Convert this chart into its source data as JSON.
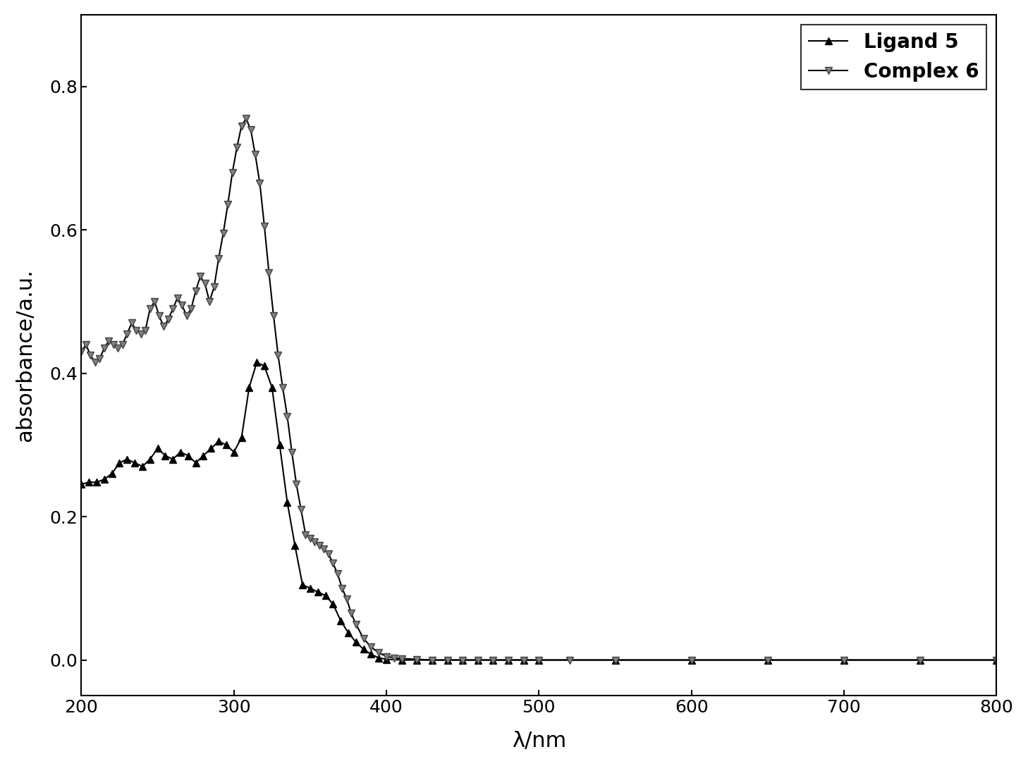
{
  "title": "",
  "xlabel": "λ/nm",
  "ylabel": "absorbance/a.u.",
  "xlim": [
    200,
    800
  ],
  "ylim": [
    -0.05,
    0.9
  ],
  "yticks": [
    0.0,
    0.2,
    0.4,
    0.6,
    0.8
  ],
  "xticks": [
    200,
    300,
    400,
    500,
    600,
    700,
    800
  ],
  "background_color": "#ffffff",
  "line_color": "#000000",
  "legend_labels": [
    "Ligand 5",
    "Complex 6"
  ],
  "ligand5_x": [
    200,
    205,
    210,
    215,
    220,
    225,
    230,
    235,
    240,
    245,
    250,
    255,
    260,
    265,
    270,
    275,
    280,
    285,
    290,
    295,
    300,
    305,
    310,
    315,
    320,
    325,
    330,
    335,
    340,
    345,
    350,
    355,
    360,
    365,
    370,
    375,
    380,
    385,
    390,
    395,
    400,
    410,
    420,
    430,
    440,
    450,
    460,
    470,
    480,
    490,
    500,
    550,
    600,
    650,
    700,
    750,
    800
  ],
  "ligand5_y": [
    0.245,
    0.248,
    0.248,
    0.252,
    0.26,
    0.275,
    0.28,
    0.275,
    0.27,
    0.28,
    0.295,
    0.285,
    0.28,
    0.29,
    0.285,
    0.275,
    0.285,
    0.295,
    0.305,
    0.3,
    0.29,
    0.31,
    0.38,
    0.415,
    0.41,
    0.38,
    0.3,
    0.22,
    0.16,
    0.105,
    0.1,
    0.095,
    0.09,
    0.078,
    0.055,
    0.038,
    0.025,
    0.015,
    0.008,
    0.003,
    0.001,
    0.0,
    0.0,
    0.0,
    0.0,
    0.0,
    0.0,
    0.0,
    0.0,
    0.0,
    0.0,
    0.0,
    0.0,
    0.0,
    0.0,
    0.0,
    0.0
  ],
  "complex6_x": [
    200,
    203,
    206,
    209,
    212,
    215,
    218,
    221,
    224,
    227,
    230,
    233,
    236,
    239,
    242,
    245,
    248,
    251,
    254,
    257,
    260,
    263,
    266,
    269,
    272,
    275,
    278,
    281,
    284,
    287,
    290,
    293,
    296,
    299,
    302,
    305,
    308,
    311,
    314,
    317,
    320,
    323,
    326,
    329,
    332,
    335,
    338,
    341,
    344,
    347,
    350,
    353,
    356,
    359,
    362,
    365,
    368,
    371,
    374,
    377,
    380,
    385,
    390,
    395,
    400,
    405,
    410,
    420,
    430,
    440,
    450,
    460,
    470,
    480,
    490,
    500,
    520,
    550,
    600,
    650,
    700,
    750,
    800
  ],
  "complex6_y": [
    0.43,
    0.44,
    0.425,
    0.415,
    0.42,
    0.435,
    0.445,
    0.44,
    0.435,
    0.44,
    0.455,
    0.47,
    0.46,
    0.455,
    0.46,
    0.49,
    0.5,
    0.48,
    0.465,
    0.475,
    0.49,
    0.505,
    0.495,
    0.48,
    0.49,
    0.515,
    0.535,
    0.525,
    0.5,
    0.52,
    0.56,
    0.595,
    0.635,
    0.68,
    0.715,
    0.745,
    0.755,
    0.74,
    0.705,
    0.665,
    0.605,
    0.54,
    0.48,
    0.425,
    0.38,
    0.34,
    0.29,
    0.245,
    0.21,
    0.175,
    0.17,
    0.165,
    0.16,
    0.155,
    0.148,
    0.135,
    0.12,
    0.1,
    0.085,
    0.065,
    0.05,
    0.03,
    0.018,
    0.01,
    0.005,
    0.003,
    0.002,
    0.001,
    0.0,
    0.0,
    0.0,
    0.0,
    0.0,
    0.0,
    0.0,
    0.0,
    0.0,
    0.0,
    0.0,
    0.0,
    0.0,
    0.0,
    0.0
  ]
}
